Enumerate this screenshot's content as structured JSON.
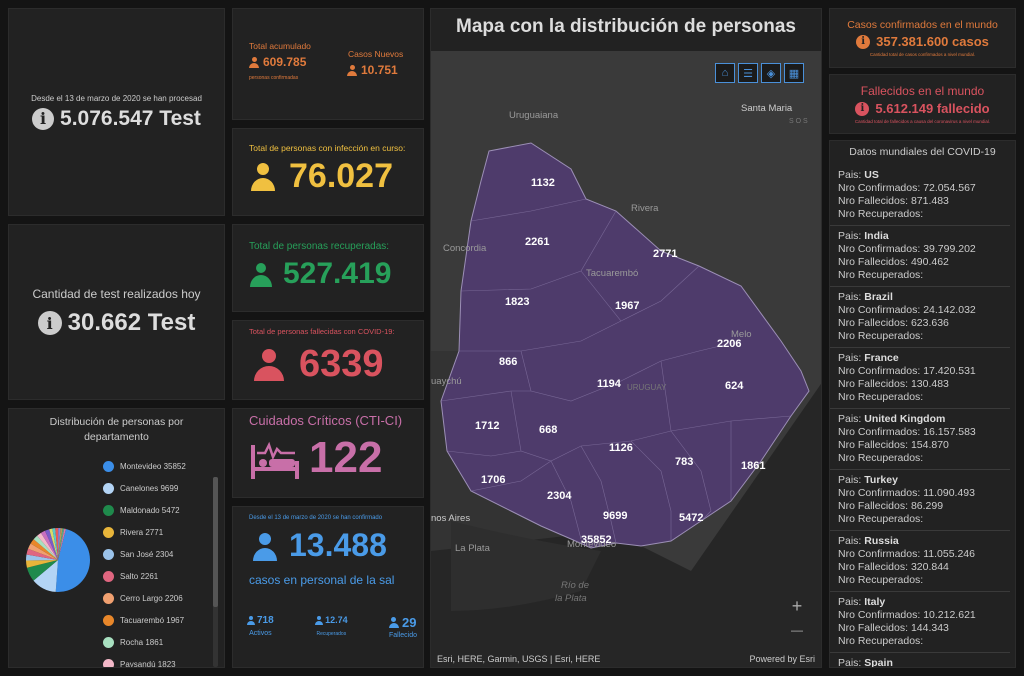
{
  "tests_total": {
    "caption": "Desde el 13 de marzo de 2020 se han procesad",
    "value": "5.076.547 Test"
  },
  "tests_today": {
    "caption": "Cantidad de test realizados hoy",
    "value": "30.662 Test"
  },
  "accumulated": {
    "label": "Total acumulado",
    "value": "609.785",
    "sub": "personas confirmadas",
    "new_label": "Casos Nuevos",
    "new_value": "10.751"
  },
  "active": {
    "label": "Total de personas con infección en curso:",
    "value": "76.027"
  },
  "recovered": {
    "label": "Total de personas recuperadas:",
    "value": "527.419"
  },
  "deceased": {
    "label": "Total de personas fallecidas con COVID-19:",
    "value": "6339"
  },
  "critical": {
    "label": "Cuidados Críticos (CTI-CI)",
    "value": "122"
  },
  "health_staff": {
    "caption": "Desde el 13 de marzo de 2020 se han confirmado",
    "value": "13.488",
    "sub": "casos en personal de la sal",
    "stats": [
      {
        "value": "718",
        "label": "Activos"
      },
      {
        "value": "12.74",
        "label": "Recuperados"
      },
      {
        "value": "29",
        "label": "Fallecido"
      }
    ]
  },
  "map": {
    "title": "Mapa con la distribución de personas",
    "attribution": "Esri, HERE, Garmin, USGS | Esri, HERE",
    "powered": "Powered by Esri",
    "places": {
      "uruguaiana": "Uruguaiana",
      "santa_maria": "Santa Maria",
      "sos": "S O S",
      "rivera": "Rivera",
      "concordia": "Concordia",
      "tacuarembo": "Tacuarembó",
      "melo": "Melo",
      "uruguay": "URUGUAY",
      "gualeguaychu": "uaychú",
      "buenos_aires": "nos Aires",
      "la_plata": "La Plata",
      "montevideo": "Montevideo",
      "rio_de": "Río de",
      "la_plata_river": "la Plata"
    },
    "values": {
      "artigas": "1132",
      "salto": "2261",
      "rivera": "2771",
      "paysandu": "1823",
      "tacuarembo": "1967",
      "cerro_largo": "2206",
      "rio_negro": "866",
      "durazno": "1194",
      "treinta_y_tres": "624",
      "soriano": "1712",
      "flores": "668",
      "florida": "1126",
      "lavalleja": "783",
      "rocha": "1861",
      "colonia": "1706",
      "san_jose": "2304",
      "canelones": "9699",
      "maldonado": "5472",
      "montevideo": "35852"
    },
    "zoom_in": "+",
    "zoom_out": "—"
  },
  "world_confirmed": {
    "title": "Casos confirmados en el mundo",
    "value": "357.381.600 casos",
    "sub": "Cantidad total de casos confirmados a nivel mundial."
  },
  "world_deaths": {
    "title": "Fallecidos en el mundo",
    "value": "5.612.149 fallecido",
    "sub": "Cantidad total de fallecidos a causa del coronavirus a nivel mundial."
  },
  "world_list": {
    "title": "Datos mundiales del COVID-19",
    "country_prefix": "Pais: ",
    "confirmed_prefix": "Nro Confirmados: ",
    "deaths_prefix": "Nro Fallecidos: ",
    "recovered_prefix": "Nro Recuperados: ",
    "items": [
      {
        "country": "US",
        "confirmed": "72.054.567",
        "deaths": "871.483"
      },
      {
        "country": "India",
        "confirmed": "39.799.202",
        "deaths": "490.462"
      },
      {
        "country": "Brazil",
        "confirmed": "24.142.032",
        "deaths": "623.636"
      },
      {
        "country": "France",
        "confirmed": "17.420.531",
        "deaths": "130.483"
      },
      {
        "country": "United Kingdom",
        "confirmed": "16.157.583",
        "deaths": "154.870"
      },
      {
        "country": "Turkey",
        "confirmed": "11.090.493",
        "deaths": "86.299"
      },
      {
        "country": "Russia",
        "confirmed": "11.055.246",
        "deaths": "320.844"
      },
      {
        "country": "Italy",
        "confirmed": "10.212.621",
        "deaths": "144.343"
      },
      {
        "country": "Spain",
        "confirmed": "",
        "deaths": ""
      }
    ]
  },
  "distribution": {
    "title": "Distribución de personas por departamento",
    "items": [
      {
        "label": "Montevideo",
        "value": 35852,
        "color": "#3b8ee8"
      },
      {
        "label": "Canelones",
        "value": 9699,
        "color": "#b3d4f5"
      },
      {
        "label": "Maldonado",
        "value": 5472,
        "color": "#1f8a4c"
      },
      {
        "label": "Rivera",
        "value": 2771,
        "color": "#e8b53a"
      },
      {
        "label": "San José",
        "value": 2304,
        "color": "#9bc3ea"
      },
      {
        "label": "Salto",
        "value": 2261,
        "color": "#e06680"
      },
      {
        "label": "Cerro Largo",
        "value": 2206,
        "color": "#f0a070"
      },
      {
        "label": "Tacuarembó",
        "value": 1967,
        "color": "#e8872a"
      },
      {
        "label": "Rocha",
        "value": 1861,
        "color": "#a8e0c0"
      },
      {
        "label": "Paysandú",
        "value": 1823,
        "color": "#f3b8c8"
      }
    ],
    "other_items": [
      {
        "value": 1712,
        "color": "#c86fbf"
      },
      {
        "value": 1706,
        "color": "#7a5cc8"
      },
      {
        "value": 1194,
        "color": "#d9d96a"
      },
      {
        "value": 1132,
        "color": "#5ac8c8"
      },
      {
        "value": 1126,
        "color": "#e85a5a"
      },
      {
        "value": 866,
        "color": "#8888dd"
      },
      {
        "value": 783,
        "color": "#bb9955"
      },
      {
        "value": 668,
        "color": "#55aa88"
      },
      {
        "value": 624,
        "color": "#dd77aa"
      }
    ]
  }
}
